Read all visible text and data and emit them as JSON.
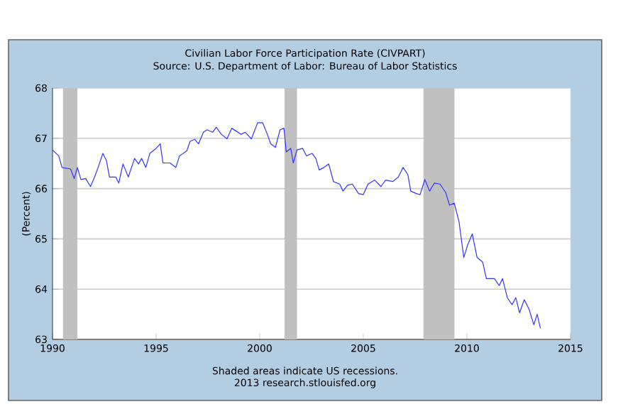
{
  "chart_data": {
    "type": "line",
    "title": "Civilian Labor Force Participation Rate (CIVPART)",
    "subtitle": "Source: U.S. Department of Labor: Bureau of Labor Statistics",
    "ylabel": "(Percent)",
    "annotations": [
      "Shaded areas indicate US recessions.",
      "2013 research.stlouisfed.org"
    ],
    "xlim": [
      1990,
      2015
    ],
    "xticks": [
      1990,
      1995,
      2000,
      2005,
      2010,
      2015
    ],
    "ylim": [
      63,
      68
    ],
    "yticks": [
      63,
      64,
      65,
      66,
      67,
      68
    ],
    "grid": "y",
    "bands": [
      {
        "axis": "x",
        "from": 1990.5,
        "to": 1991.2,
        "color": "#c0c0c0"
      },
      {
        "axis": "x",
        "from": 2001.2,
        "to": 2001.8,
        "color": "#c0c0c0"
      },
      {
        "axis": "x",
        "from": 2007.9,
        "to": 2009.4,
        "color": "#c0c0c0"
      }
    ],
    "series": [
      {
        "color": "#3333ff",
        "x": [
          1990.0,
          1990.3,
          1990.46,
          1990.87,
          1991.05,
          1991.2,
          1991.37,
          1991.6,
          1991.83,
          1992.0,
          1992.2,
          1992.43,
          1992.6,
          1992.75,
          1993.05,
          1993.2,
          1993.4,
          1993.66,
          1993.96,
          1994.15,
          1994.3,
          1994.5,
          1994.7,
          1995.0,
          1995.2,
          1995.33,
          1995.67,
          1995.95,
          1996.13,
          1996.48,
          1996.64,
          1996.86,
          1997.05,
          1997.28,
          1997.46,
          1997.73,
          1997.9,
          1998.15,
          1998.42,
          1998.65,
          1998.88,
          1999.1,
          1999.3,
          1999.6,
          1999.9,
          2000.14,
          2000.37,
          2000.53,
          2000.76,
          2000.98,
          2001.17,
          2001.28,
          2001.5,
          2001.62,
          2001.8,
          2002.07,
          2002.26,
          2002.53,
          2002.71,
          2002.87,
          2003.1,
          2003.33,
          2003.56,
          2003.86,
          2004.02,
          2004.25,
          2004.47,
          2004.77,
          2005.0,
          2005.23,
          2005.55,
          2005.85,
          2006.08,
          2006.42,
          2006.69,
          2006.92,
          2007.15,
          2007.29,
          2007.56,
          2007.74,
          2007.97,
          2008.2,
          2008.43,
          2008.7,
          2008.98,
          2009.16,
          2009.39,
          2009.62,
          2009.85,
          2010.03,
          2010.26,
          2010.49,
          2010.76,
          2010.94,
          2011.33,
          2011.56,
          2011.72,
          2011.95,
          2012.18,
          2012.36,
          2012.54,
          2012.77,
          2013.0,
          2013.23,
          2013.39,
          2013.55
        ],
        "values": [
          66.77,
          66.65,
          66.42,
          66.39,
          66.2,
          66.42,
          66.18,
          66.2,
          66.04,
          66.2,
          66.42,
          66.7,
          66.56,
          66.23,
          66.23,
          66.11,
          66.49,
          66.23,
          66.6,
          66.49,
          66.6,
          66.42,
          66.7,
          66.8,
          66.89,
          66.51,
          66.51,
          66.42,
          66.65,
          66.75,
          66.94,
          66.98,
          66.89,
          67.12,
          67.17,
          67.12,
          67.22,
          67.08,
          66.99,
          67.2,
          67.14,
          67.08,
          67.12,
          66.99,
          67.31,
          67.31,
          67.08,
          66.89,
          66.82,
          67.17,
          67.2,
          66.73,
          66.8,
          66.51,
          66.77,
          66.8,
          66.65,
          66.7,
          66.6,
          66.37,
          66.42,
          66.49,
          66.14,
          66.09,
          65.95,
          66.07,
          66.09,
          65.9,
          65.88,
          66.09,
          66.17,
          66.04,
          66.17,
          66.14,
          66.23,
          66.42,
          66.28,
          65.95,
          65.9,
          65.88,
          66.18,
          65.95,
          66.11,
          66.09,
          65.92,
          65.67,
          65.71,
          65.34,
          64.63,
          64.87,
          65.1,
          64.63,
          64.54,
          64.21,
          64.21,
          64.07,
          64.21,
          63.83,
          63.69,
          63.83,
          63.53,
          63.79,
          63.6,
          63.29,
          63.5,
          63.22
        ]
      }
    ]
  }
}
